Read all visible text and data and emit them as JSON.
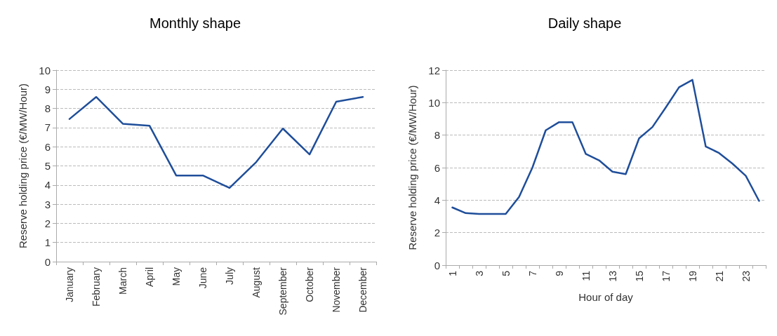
{
  "chart_data": [
    {
      "type": "line",
      "title": "Monthly shape",
      "ylabel": "Reserve holding price (€/MW/Hour)",
      "categories": [
        "January",
        "February",
        "March",
        "April",
        "May",
        "June",
        "July",
        "August",
        "September",
        "October",
        "November",
        "December"
      ],
      "series": [
        {
          "color": "#1f4e9a",
          "values": [
            7.45,
            8.6,
            7.2,
            7.1,
            4.5,
            4.5,
            3.85,
            5.2,
            6.95,
            5.6,
            8.35,
            8.6
          ]
        }
      ],
      "ylim": [
        0,
        10
      ],
      "yticks": [
        0,
        1,
        2,
        3,
        4,
        5,
        6,
        7,
        8,
        9,
        10
      ],
      "grid": "y",
      "marker": "none",
      "line_style": "solid"
    },
    {
      "type": "line",
      "title": "Daily shape",
      "xlabel": "Hour of day",
      "ylabel": "Reserve holding price (€/MW/Hour)",
      "categories": [
        "1",
        null,
        "3",
        null,
        "5",
        null,
        "7",
        null,
        "9",
        null,
        "11",
        null,
        "13",
        null,
        "15",
        null,
        "17",
        null,
        "19",
        null,
        "21",
        null,
        "23",
        null
      ],
      "series": [
        {
          "color": "#1f4e9a",
          "values": [
            3.55,
            3.2,
            3.15,
            3.15,
            3.15,
            4.2,
            6.0,
            8.3,
            8.8,
            8.8,
            6.85,
            6.45,
            5.75,
            5.6,
            7.8,
            8.5,
            9.7,
            10.95,
            11.4,
            7.3,
            6.9,
            6.25,
            5.5,
            3.95
          ]
        }
      ],
      "ylim": [
        0,
        12
      ],
      "yticks": [
        0,
        2,
        4,
        6,
        8,
        10,
        12
      ],
      "grid": "y",
      "marker": "none",
      "line_style": "solid"
    }
  ]
}
